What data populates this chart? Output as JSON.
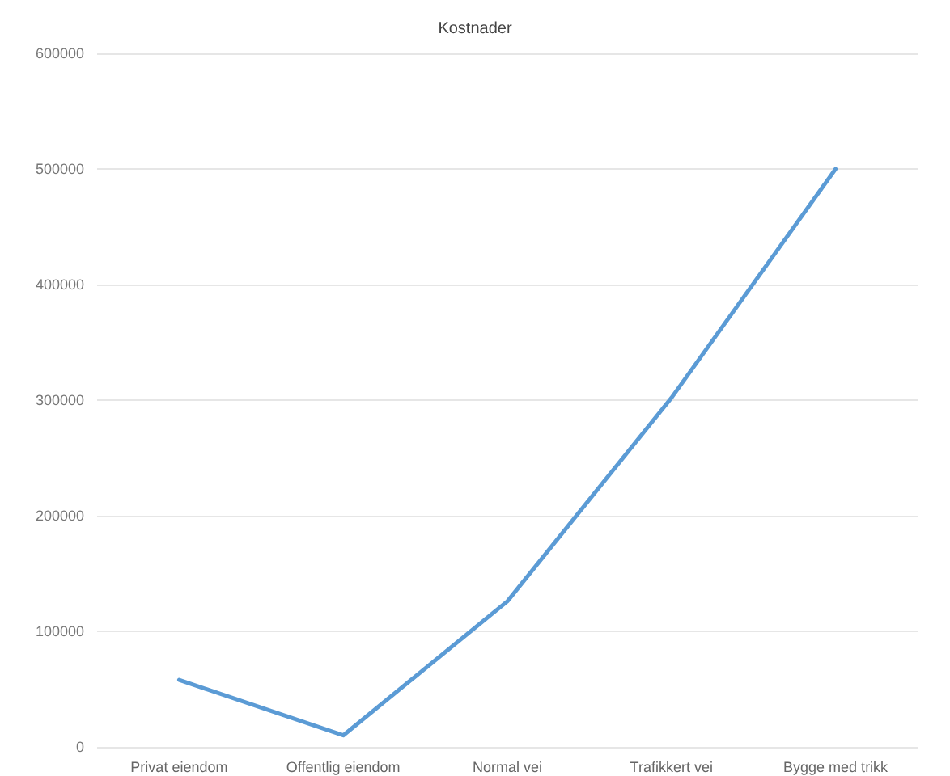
{
  "chart_data": {
    "type": "line",
    "title": "Kostnader",
    "categories": [
      "Privat eiendom",
      "Offentlig eiendom",
      "Normal vei",
      "Trafikkert vei",
      "Bygge med trikk"
    ],
    "series": [
      {
        "color": "#5b9bd5",
        "values": [
          58000,
          10000,
          126000,
          302000,
          500000
        ]
      }
    ],
    "ylim": [
      0,
      600000
    ],
    "yticks": [
      0,
      100000,
      200000,
      300000,
      400000,
      500000,
      600000
    ],
    "grid": "y",
    "marker": "none",
    "line_style": "solid"
  }
}
